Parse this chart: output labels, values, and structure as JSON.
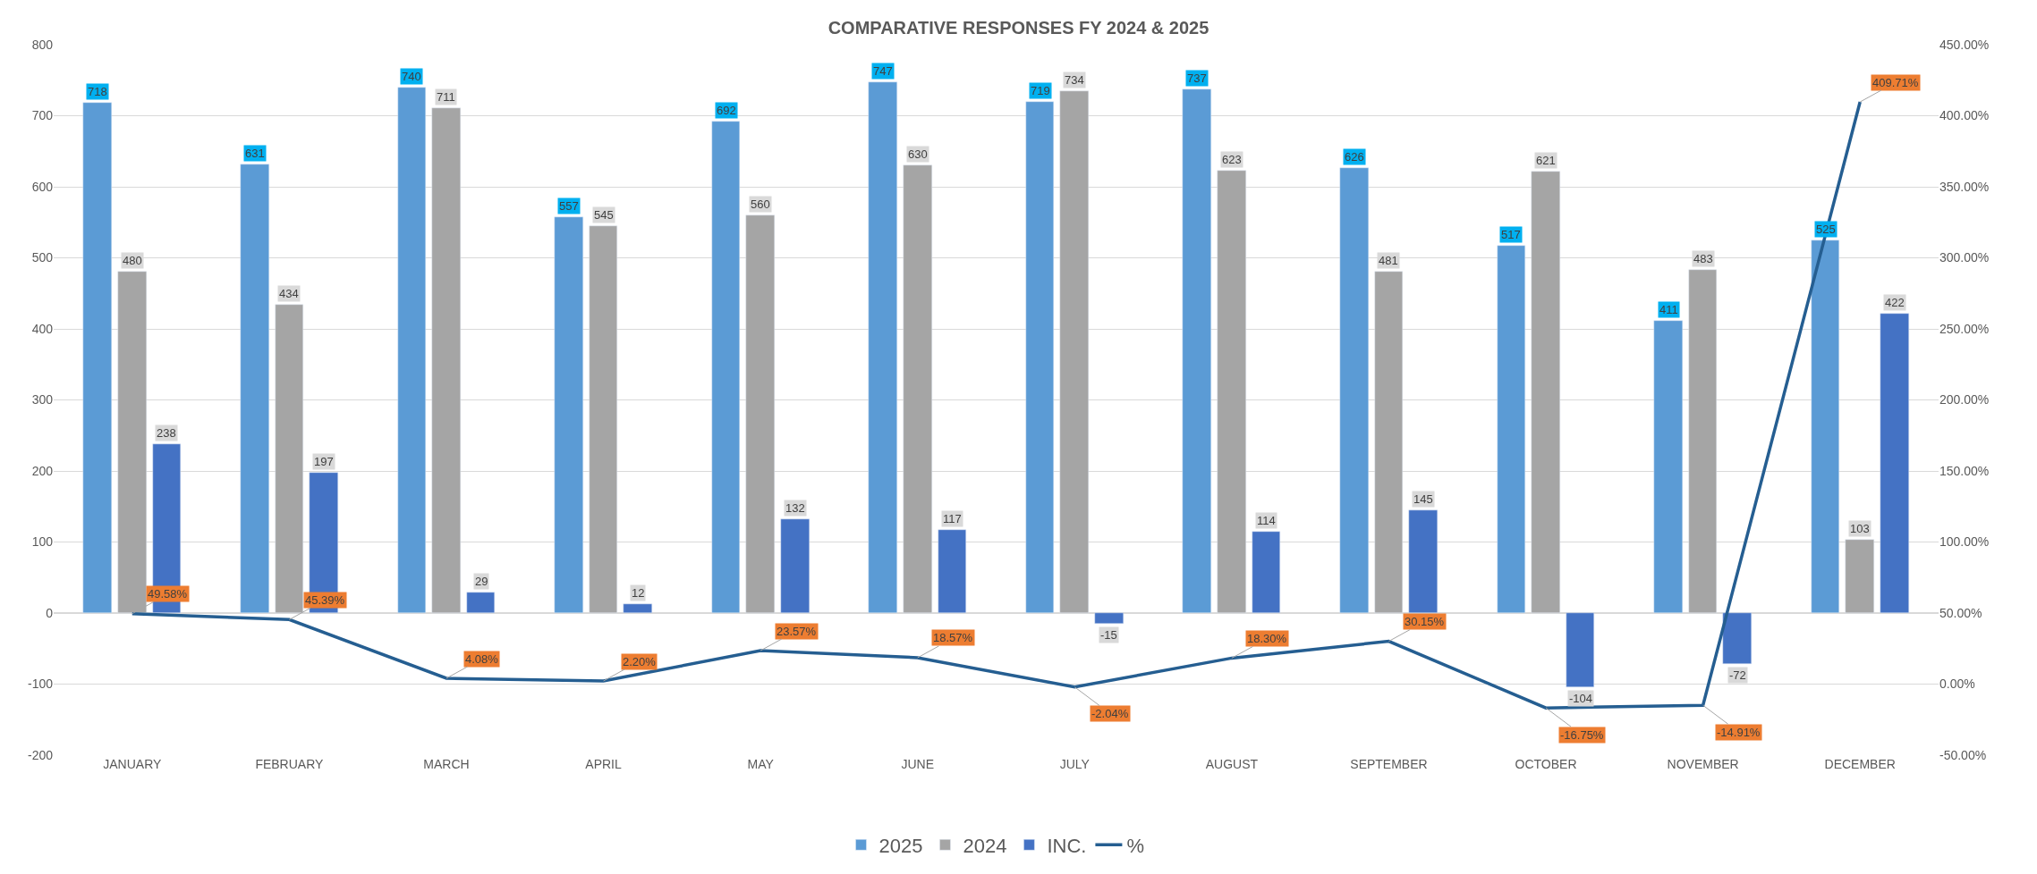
{
  "chart_data": {
    "type": "bar",
    "title": "COMPARATIVE RESPONSES FY 2024 & 2025",
    "categories": [
      "JANUARY",
      "FEBRUARY",
      "MARCH",
      "APRIL",
      "MAY",
      "JUNE",
      "JULY",
      "AUGUST",
      "SEPTEMBER",
      "OCTOBER",
      "NOVEMBER",
      "DECEMBER"
    ],
    "series": [
      {
        "name": "2025",
        "color": "#5b9bd5",
        "values": [
          718,
          631,
          740,
          557,
          692,
          747,
          719,
          737,
          626,
          517,
          411,
          525
        ],
        "value_labels": [
          "718",
          "631",
          "740",
          "557",
          "692",
          "747",
          "719",
          "737",
          "626",
          "517",
          "411",
          "525"
        ]
      },
      {
        "name": "2024",
        "color": "#a5a5a5",
        "values": [
          480,
          434,
          711,
          545,
          560,
          630,
          734,
          623,
          481,
          621,
          483,
          103
        ],
        "value_labels": [
          "480",
          "434",
          "711",
          "545",
          "560",
          "630",
          "734",
          "623",
          "481",
          "621",
          "483",
          "103"
        ]
      },
      {
        "name": "INC.",
        "color": "#4472c4",
        "values": [
          238,
          197,
          29,
          12,
          132,
          117,
          -15,
          114,
          145,
          -104,
          -72,
          422
        ],
        "value_labels": [
          "238",
          "197",
          "29",
          "12",
          "132",
          "117",
          "-15",
          "114",
          "145",
          "-104",
          "-72",
          "422"
        ]
      },
      {
        "name": "%",
        "type": "line",
        "axis": "y2",
        "color": "#255e91",
        "values": [
          49.58,
          45.39,
          4.08,
          2.2,
          23.57,
          18.57,
          -2.04,
          18.3,
          30.15,
          -16.75,
          -14.91,
          409.71
        ],
        "value_labels": [
          "49.58%",
          "45.39%",
          "4.08%",
          "2.20%",
          "23.57%",
          "18.57%",
          "-2.04%",
          "18.30%",
          "30.15%",
          "-16.75%",
          "-14.91%",
          "409.71%"
        ]
      }
    ],
    "ylim": [
      -200,
      800
    ],
    "yticks": [
      -200,
      -100,
      0,
      100,
      200,
      300,
      400,
      500,
      600,
      700,
      800
    ],
    "y2lim": [
      -50,
      450
    ],
    "y2ticks": [
      {
        "value": -50,
        "label": "-50.00%"
      },
      {
        "value": 0,
        "label": "0.00%"
      },
      {
        "value": 50,
        "label": "50.00%"
      },
      {
        "value": 100,
        "label": "100.00%"
      },
      {
        "value": 150,
        "label": "150.00%"
      },
      {
        "value": 200,
        "label": "200.00%"
      },
      {
        "value": 250,
        "label": "250.00%"
      },
      {
        "value": 300,
        "label": "300.00%"
      },
      {
        "value": 350,
        "label": "350.00%"
      },
      {
        "value": 400,
        "label": "400.00%"
      },
      {
        "value": 450,
        "label": "450.00%"
      }
    ],
    "grid": "y",
    "legend": "bottom",
    "marker": "none",
    "line_style": "solid"
  }
}
